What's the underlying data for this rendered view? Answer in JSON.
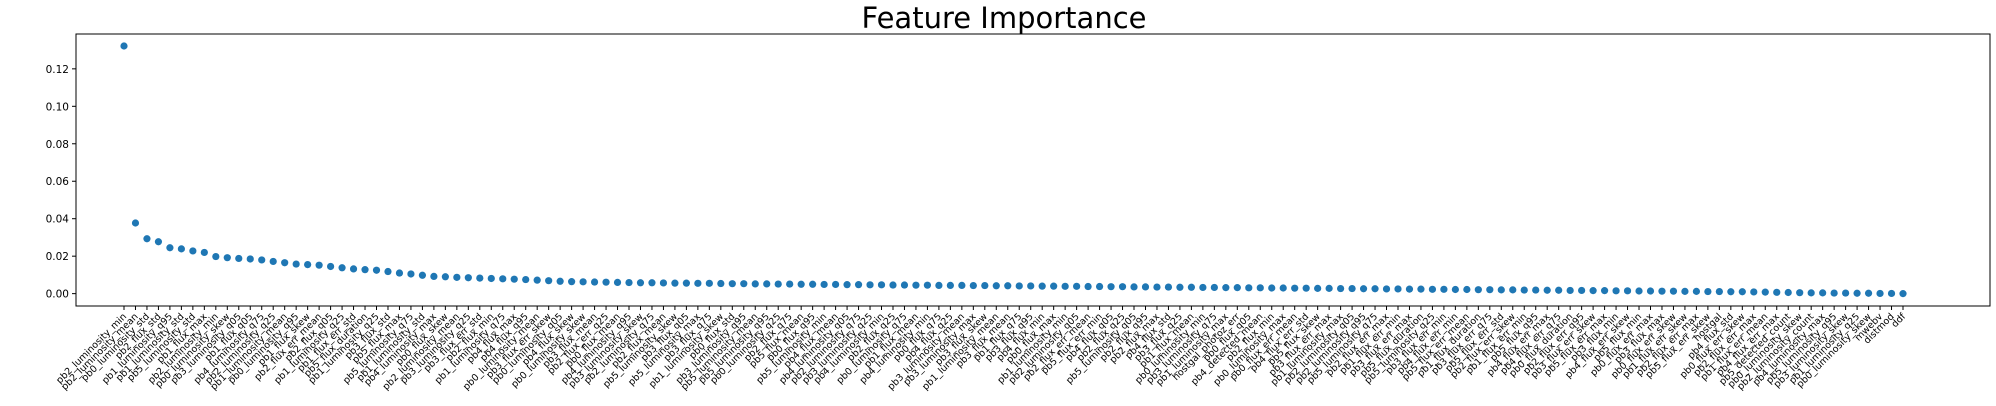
{
  "chart_data": {
    "type": "scatter",
    "title": "Feature Importance",
    "xlabel": "",
    "ylabel": "",
    "ylim": [
      -0.0066,
      0.1386
    ],
    "yticks": [
      0.0,
      0.02,
      0.04,
      0.06,
      0.08,
      0.1,
      0.12
    ],
    "ytick_labels": [
      "0.00",
      "0.02",
      "0.04",
      "0.06",
      "0.08",
      "0.10",
      "0.12"
    ],
    "grid": false,
    "legend": "none",
    "marker_color": "#1f77b4",
    "categories": [
      "pb2_luminosity_min",
      "pb2_luminosity_mean",
      "pb0_luminosity_std",
      "pb2_flux_std",
      "pb1_luminosity_q95",
      "pb1_luminosity_std",
      "pb5_luminosity_std",
      "pb1_flux_max",
      "pb2_luminosity_min",
      "pb0_luminosity_skew",
      "pb3_luminosity_q05",
      "pb1_flux_q05",
      "pb4_luminosity_q75",
      "pb2_luminosity_q25",
      "pb1_luminosity_mean",
      "pb0_luminosity_q95",
      "pb1_flux_skew",
      "pb2_flux_err_mean",
      "pb2_flux_q05",
      "pb1_luminosity_q25",
      "pb1_flux_err_std",
      "pb5_flux_duration",
      "pb1_luminosity_q25",
      "pb3_flux_std",
      "pb5_flux_max",
      "pb5_luminosity_q75",
      "pb1_luminosity_std",
      "pb4_luminosity_max",
      "pb0_flux_skew",
      "pb2_luminosity_mean",
      "pb3_luminosity_q25",
      "pb3_flux_err_std",
      "pb2_flux_min",
      "pb1_luminosity_q75",
      "pb4_flux_max",
      "pb4_flux_q95",
      "pb0_luminosity_mean",
      "pb3_flux_err_skew",
      "pb0_luminosity_q05",
      "pb4_flux_skew",
      "pb0_luminosity_skew",
      "pb3_flux_mean",
      "pb2_flux_err_q25",
      "pb0_flux_mean",
      "pb4_luminosity_q95",
      "pb3_luminosity_skew",
      "pb2_luminosity_q75",
      "pb2_flux_mean",
      "pb5_luminosity_skew",
      "pb3_flux_q05",
      "pb5_luminosity_max",
      "pb3_flux_q75",
      "pb1_luminosity_skew",
      "pb0_flux_std",
      "pb3_luminosity_q95",
      "pb5_luminosity_mean",
      "pb5_luminosity_q95",
      "pb0_luminosity_q25",
      "pb2_flux_q75",
      "pb5_flux_mean",
      "pb0_flux_q95",
      "pb5_luminosity_min",
      "pb4_flux_mean",
      "pb4_luminosity_q05",
      "pb2_luminosity_q75",
      "pb3_luminosity_q25",
      "pb4_luminosity_min",
      "pb2_flux_q25",
      "pb0_luminosity_q75",
      "pb1_flux_mean",
      "pb4_luminosity_min",
      "pb0_flux_q75",
      "pb4_flux_q25",
      "pb3_luminosity_mean",
      "pb3_luminosity_max",
      "pb3_flux_skew",
      "pb1_luminosity_mean",
      "pb3_flux_mean",
      "pb1_flux_q75",
      "pb3_flux_q95",
      "pb4_flux_min",
      "pb0_flux_max",
      "pb1_luminosity_min",
      "pb2_luminosity_q05",
      "pb2_flux_err_mean",
      "pb5_flux_err_min",
      "pb4_flux_q05",
      "pb2_flux_q25",
      "pb5_luminosity_q05",
      "pb2_flux_q95",
      "pb2_flux_max",
      "pb4_flux_std",
      "pb3_flux_q25",
      "pb1_flux_mean",
      "pb0_luminosity_min",
      "pb3_luminosity_q75",
      "pb1_luminosity_max",
      "hostgal_photoz_err",
      "pb0_flux_q05",
      "pb4_detected_mean",
      "pb2_flux_min",
      "pb0_luminosity_max",
      "pb0_flux_err_mean",
      "pb4_flux_err_std",
      "pb5_flux_skew",
      "pb3_flux_err_max",
      "pb1_luminosity_max",
      "pb2_luminosity_q05",
      "pb2_luminosity_q95",
      "pb5_luminosity_q75",
      "pb2_flux_err_max",
      "pb1_flux_err_min",
      "pb3_flux_err_max",
      "pb5_flux_duration",
      "pb5_luminosity_q25",
      "pb3_flux_err_min",
      "pb4_flux_err_min",
      "pb5_flux_err_mean",
      "pb1_flux_duration",
      "pb3_flux_err_q75",
      "pb5_flux_err_std",
      "pb2_flux_err_skew",
      "pb1_flux_err_min",
      "pb5_flux_q95",
      "pb4_flux_err_max",
      "pb4_flux_err_q75",
      "pb0_flux_duration",
      "pb2_flux_err_q95",
      "pb3_flux_err_skew",
      "pb5_flux_err_max",
      "pb3_flux_min",
      "pb4_flux_err_skew",
      "pb5_flux_min",
      "pb0_flux_err_max",
      "pb3_flux_max",
      "pb0_flux_err_skew",
      "pb1_flux_err_skew",
      "pb2_flux_err_max",
      "pb5_flux_err_skew",
      "hostgal",
      "pb4_flux_std",
      "pb0_flux_err_skew",
      "pb2_flux_err_max",
      "pb1_flux_err_mean",
      "pb4_flux_err_max",
      "pb5_detected_count",
      "pb0_luminosity_skew",
      "pb2_luminosity_count",
      "pb4_luminosity_max",
      "pb5_luminosity_q95",
      "pb3_luminosity_skew",
      "pb1_luminosity_q25",
      "pb0_luminosity_skew",
      "mwebv",
      "distmod",
      "ddf"
    ],
    "values": [
      0.1322,
      0.0377,
      0.0293,
      0.0277,
      0.0245,
      0.0239,
      0.0228,
      0.022,
      0.0198,
      0.0192,
      0.0188,
      0.0185,
      0.018,
      0.0172,
      0.0165,
      0.0158,
      0.0155,
      0.0152,
      0.0145,
      0.0138,
      0.0132,
      0.0128,
      0.0125,
      0.0118,
      0.011,
      0.0105,
      0.0098,
      0.0092,
      0.009,
      0.0087,
      0.0085,
      0.0083,
      0.0081,
      0.0079,
      0.0077,
      0.0075,
      0.0072,
      0.0069,
      0.0066,
      0.0064,
      0.0063,
      0.0062,
      0.0061,
      0.006,
      0.0059,
      0.0058,
      0.0058,
      0.0057,
      0.0056,
      0.0056,
      0.0055,
      0.0055,
      0.0054,
      0.0053,
      0.0053,
      0.0052,
      0.0052,
      0.0051,
      0.0051,
      0.005,
      0.005,
      0.0049,
      0.0049,
      0.0048,
      0.0048,
      0.0047,
      0.0047,
      0.0046,
      0.0046,
      0.0045,
      0.0045,
      0.0044,
      0.0044,
      0.0044,
      0.0043,
      0.0043,
      0.0042,
      0.0042,
      0.0041,
      0.0041,
      0.004,
      0.004,
      0.0039,
      0.0039,
      0.0038,
      0.0038,
      0.0037,
      0.0037,
      0.0036,
      0.0036,
      0.0035,
      0.0035,
      0.0034,
      0.0034,
      0.0033,
      0.0033,
      0.0032,
      0.0032,
      0.0031,
      0.0031,
      0.003,
      0.003,
      0.0029,
      0.0029,
      0.0028,
      0.0028,
      0.0027,
      0.0027,
      0.0026,
      0.0026,
      0.0025,
      0.0025,
      0.0024,
      0.0024,
      0.0023,
      0.0023,
      0.0022,
      0.0022,
      0.0021,
      0.0021,
      0.002,
      0.002,
      0.0019,
      0.0019,
      0.0018,
      0.0018,
      0.0017,
      0.0017,
      0.0016,
      0.0016,
      0.0015,
      0.0015,
      0.0014,
      0.0014,
      0.0013,
      0.0013,
      0.0012,
      0.0012,
      0.0011,
      0.0011,
      0.001,
      0.001,
      0.0009,
      0.0008,
      0.0007,
      0.0006,
      0.0005,
      0.0004,
      0.0004,
      0.0003,
      0.0003,
      0.0002,
      0.0002,
      0.0001,
      0.0001,
      0.0
    ]
  }
}
